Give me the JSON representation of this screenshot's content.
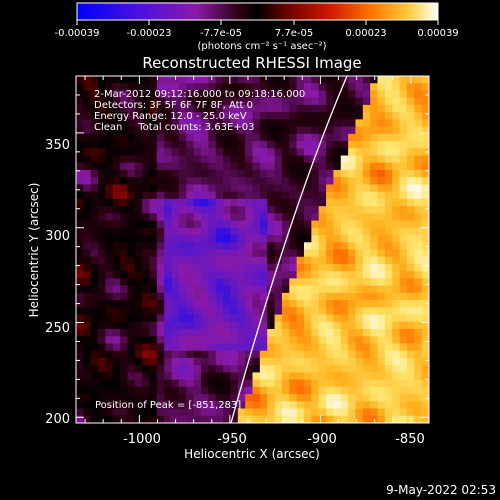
{
  "colorbar": {
    "tick_labels": [
      "-0.00039",
      "-0.00023",
      "-7.7e-05",
      "7.7e-05",
      "0.00023",
      "0.00039"
    ],
    "units_label": "(photons cm⁻² s⁻¹ asec⁻²)"
  },
  "figure": {
    "title": "Reconstructed RHESSI Image",
    "info_lines": [
      "2-Mar-2012 09:12:16.000 to 09:18:16.000",
      "Detectors: 3F 5F 6F 7F 8F, Att 0",
      "Energy Range: 12.0 - 25.0 keV",
      "Clean     Total counts: 3.63E+03"
    ],
    "peak_text": "Position of Peak = [-851,283]",
    "timestamp": "9-May-2022 02:53"
  },
  "axes": {
    "xlabel": "Heliocentric X (arcsec)",
    "ylabel": "Heliocentric Y (arcsec)",
    "x_ticks": [
      "-1000",
      "-950",
      "-900",
      "-850"
    ],
    "y_ticks": [
      "200",
      "250",
      "300",
      "350"
    ]
  },
  "chart_data": {
    "type": "heatmap",
    "title": "Reconstructed RHESSI Image",
    "xlabel": "Heliocentric X (arcsec)",
    "ylabel": "Heliocentric Y (arcsec)",
    "xlim": [
      -1035,
      -840
    ],
    "ylim": [
      197,
      380
    ],
    "x_ticks": [
      -1000,
      -950,
      -900,
      -850
    ],
    "y_ticks": [
      200,
      250,
      300,
      350
    ],
    "value_range": [
      -0.00039,
      0.00039
    ],
    "colorbar_ticks": [
      -0.00039,
      -0.00023,
      -7.7e-05,
      7.7e-05,
      0.00023,
      0.00039
    ],
    "peak": [
      -851,
      283
    ],
    "colormap": [
      "#0000ff",
      "#5a18c8",
      "#8a1aa8",
      "#2a0010",
      "#000000",
      "#6a0000",
      "#c81a00",
      "#ff6a00",
      "#ffb21e",
      "#ffe46a",
      "#ffffff"
    ]
  }
}
